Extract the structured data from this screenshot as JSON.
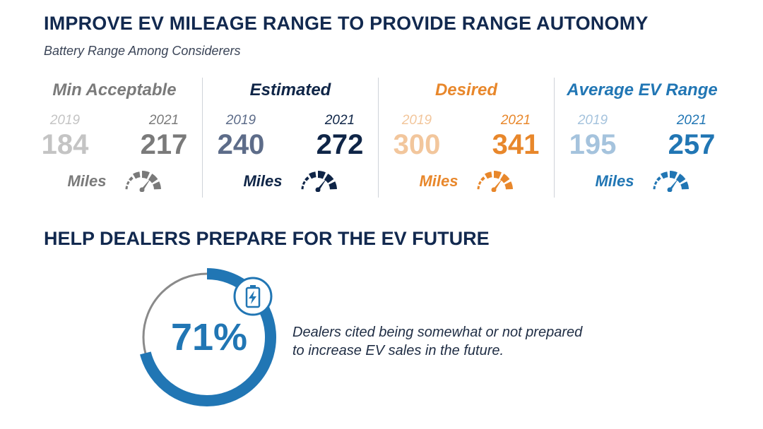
{
  "title": "IMPROVE EV MILEAGE RANGE TO PROVIDE RANGE AUTONOMY",
  "subtitle": "Battery Range Among Considerers",
  "columns": [
    {
      "label": "Min Acceptable",
      "year_a": "2019",
      "year_b": "2021",
      "value_a": "184",
      "value_b": "217",
      "unit": "Miles",
      "color_dark": "#7a7a7a",
      "color_light": "#c4c4c4"
    },
    {
      "label": "Estimated",
      "year_a": "2019",
      "year_b": "2021",
      "value_a": "240",
      "value_b": "272",
      "unit": "Miles",
      "color_dark": "#0f2547",
      "color_light": "#5d6c89"
    },
    {
      "label": "Desired",
      "year_a": "2019",
      "year_b": "2021",
      "value_a": "300",
      "value_b": "341",
      "unit": "Miles",
      "color_dark": "#e8872b",
      "color_light": "#f2c69c"
    },
    {
      "label": "Average EV Range",
      "year_a": "2019",
      "year_b": "2021",
      "value_a": "195",
      "value_b": "257",
      "unit": "Miles",
      "color_dark": "#2176b4",
      "color_light": "#a5c3dd"
    }
  ],
  "section2_title": "HELP DEALERS PREPARE FOR THE EV FUTURE",
  "stat": {
    "percent_label": "71%",
    "percent_value": 0.71,
    "description_line1": "Dealers cited being somewhat or not prepared",
    "description_line2": "to increase EV sales in the future.",
    "color": "#2176b4",
    "track_color": "#8a8a8a"
  }
}
